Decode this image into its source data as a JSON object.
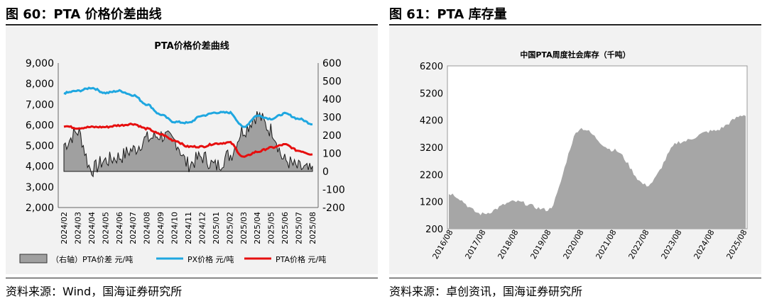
{
  "left": {
    "figure_title": "图 60：PTA 价格价差曲线",
    "source": "资料来源：Wind，国海证券研究所"
  },
  "right": {
    "figure_title": "图 61：PTA 库存量",
    "source": "资料来源：卓创资讯，国海证券研究所"
  },
  "chart_data": [
    {
      "type": "line",
      "title": "PTA价格价差曲线",
      "categories": [
        "2024/02",
        "2024/03",
        "2024/04",
        "2024/05",
        "2024/06",
        "2024/07",
        "2024/08",
        "2024/09",
        "2024/10",
        "2024/11",
        "2024/12",
        "2025/01",
        "2025/02",
        "2025/03",
        "2025/04",
        "2025/05",
        "2025/06",
        "2025/07",
        "2025/08"
      ],
      "ylim": [
        2000,
        9000
      ],
      "yticks": [
        "2,000",
        "3,000",
        "4,000",
        "5,000",
        "6,000",
        "7,000",
        "8,000",
        "9,000"
      ],
      "y2lim": [
        -200,
        600
      ],
      "y2ticks": [
        "-200",
        "-100",
        "0",
        "100",
        "200",
        "300",
        "400",
        "500",
        "600"
      ],
      "legend": "bottom",
      "series": [
        {
          "name": "（右轴）PTA价差 元/吨",
          "type": "area",
          "axis": "right",
          "color": "#a0a0a0",
          "values": [
            150,
            220,
            10,
            60,
            80,
            120,
            180,
            200,
            170,
            40,
            80,
            30,
            90,
            230,
            310,
            230,
            60,
            20,
            0
          ]
        },
        {
          "name": "PX价格 元/吨",
          "type": "line",
          "axis": "left",
          "color": "#1fa7e0",
          "values": [
            7550,
            7650,
            7800,
            7550,
            7650,
            7450,
            7000,
            6500,
            6150,
            6100,
            6450,
            6600,
            6600,
            5900,
            6450,
            6300,
            6550,
            6300,
            6050
          ]
        },
        {
          "name": "PTA价格 元/吨",
          "type": "line",
          "axis": "left",
          "color": "#e60f0f",
          "values": [
            5950,
            5850,
            5900,
            5900,
            5980,
            6050,
            5820,
            5550,
            5250,
            4950,
            4950,
            5100,
            5150,
            4450,
            4700,
            4900,
            5050,
            4750,
            4580
          ]
        }
      ]
    },
    {
      "type": "area",
      "title": "中国PTA周度社会库存（千吨）",
      "categories": [
        "2016/08",
        "2017/08",
        "2018/08",
        "2019/08",
        "2020/08",
        "2021/08",
        "2022/08",
        "2023/08",
        "2024/08",
        "2025/08"
      ],
      "ylim": [
        200,
        6200
      ],
      "yticks": [
        "200",
        "1200",
        "2200",
        "3200",
        "4200",
        "5200",
        "6200"
      ],
      "series": [
        {
          "name": "",
          "color": "#a6a6a6",
          "values": [
            1500,
            750,
            1200,
            900,
            3900,
            3100,
            1800,
            3400,
            3800,
            4400
          ]
        }
      ]
    }
  ]
}
